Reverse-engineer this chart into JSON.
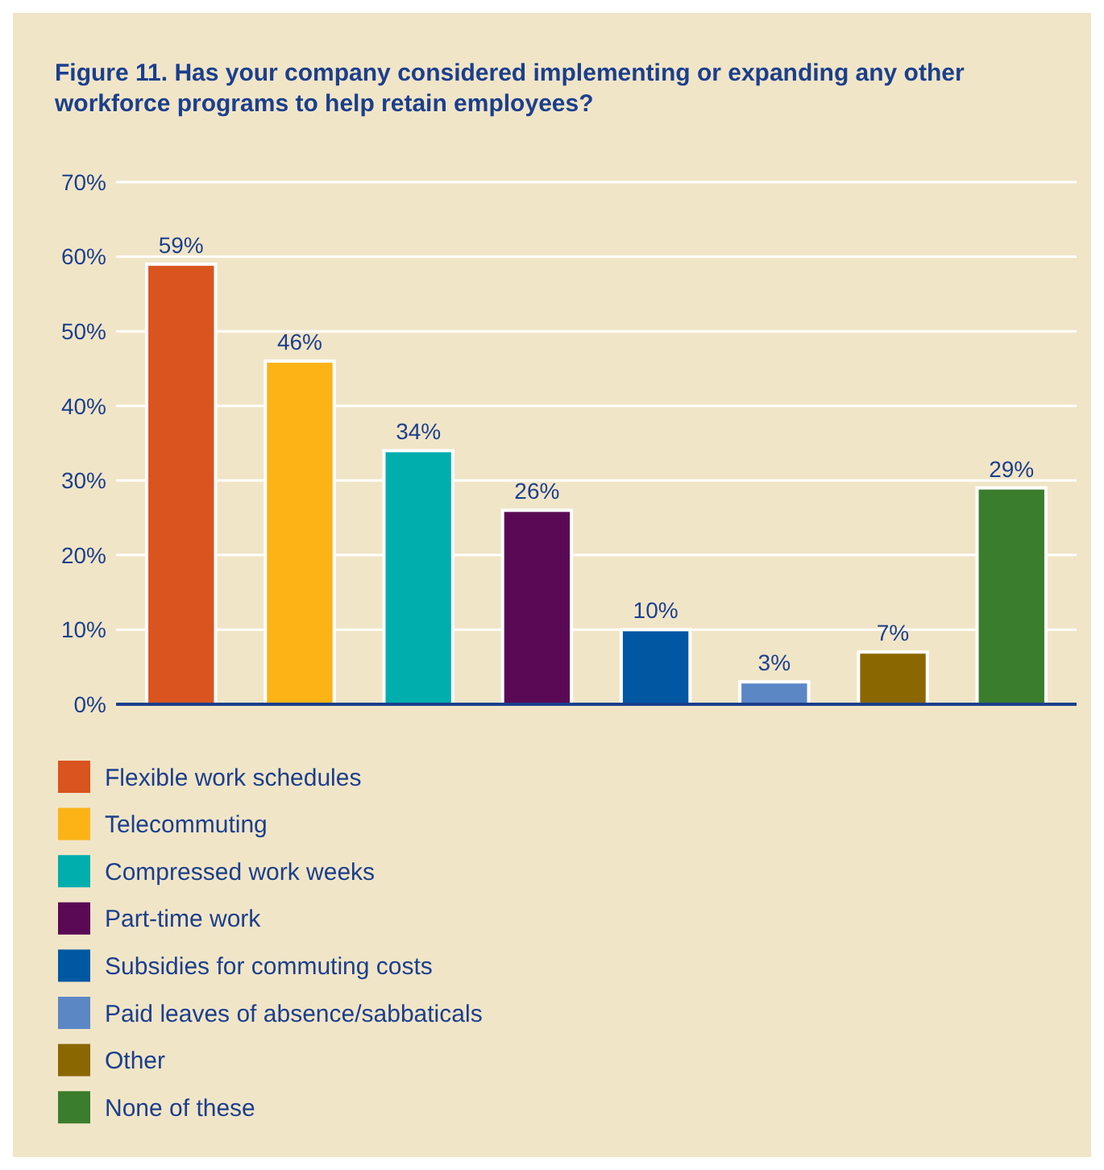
{
  "chart_data": {
    "type": "bar",
    "title": "Figure 11. Has your company considered implementing or expanding any other workforce programs to help retain employees?",
    "categories": [
      null,
      null,
      null,
      null,
      null,
      null,
      null,
      null
    ],
    "series": [
      {
        "name": "Flexible work schedules",
        "color": "#d9541e",
        "values": [
          59,
          null,
          null,
          null,
          null,
          null,
          null,
          null
        ],
        "value_labels": [
          "59%",
          null,
          null,
          null,
          null,
          null,
          null,
          null
        ]
      },
      {
        "name": "Telecommuting",
        "color": "#fbb316",
        "values": [
          null,
          46,
          null,
          null,
          null,
          null,
          null,
          null
        ],
        "value_labels": [
          null,
          "46%",
          null,
          null,
          null,
          null,
          null,
          null
        ]
      },
      {
        "name": "Compressed work weeks",
        "color": "#00aeae",
        "values": [
          null,
          null,
          34,
          null,
          null,
          null,
          null,
          null
        ],
        "value_labels": [
          null,
          null,
          "34%",
          null,
          null,
          null,
          null,
          null
        ]
      },
      {
        "name": "Part-time work",
        "color": "#5a0a54",
        "values": [
          null,
          null,
          null,
          26,
          null,
          null,
          null,
          null
        ],
        "value_labels": [
          null,
          null,
          null,
          "26%",
          null,
          null,
          null,
          null
        ]
      },
      {
        "name": "Subsidies for commuting costs",
        "color": "#0058a3",
        "values": [
          null,
          null,
          null,
          null,
          10,
          null,
          null,
          null
        ],
        "value_labels": [
          null,
          null,
          null,
          null,
          "10%",
          null,
          null,
          null
        ]
      },
      {
        "name": "Paid leaves of absence/sabbaticals",
        "color": "#5b87c5",
        "values": [
          null,
          null,
          null,
          null,
          null,
          3,
          null,
          null
        ],
        "value_labels": [
          null,
          null,
          null,
          null,
          null,
          "3%",
          null,
          null
        ]
      },
      {
        "name": "Other",
        "color": "#8b6700",
        "values": [
          null,
          null,
          null,
          null,
          null,
          null,
          7,
          null
        ],
        "value_labels": [
          null,
          null,
          null,
          null,
          null,
          null,
          "7%",
          null
        ]
      },
      {
        "name": "None of these",
        "color": "#3a7d2c",
        "values": [
          null,
          null,
          null,
          null,
          null,
          null,
          null,
          29
        ],
        "value_labels": [
          null,
          null,
          null,
          null,
          null,
          null,
          null,
          "29%"
        ]
      }
    ],
    "stacked": true,
    "ylim": [
      0,
      70
    ],
    "yticks": [
      {
        "value": 0,
        "label": "0%"
      },
      {
        "value": 10,
        "label": "10%"
      },
      {
        "value": 20,
        "label": "20%"
      },
      {
        "value": 30,
        "label": "30%"
      },
      {
        "value": 40,
        "label": "40%"
      },
      {
        "value": 50,
        "label": "50%"
      },
      {
        "value": 60,
        "label": "60%"
      },
      {
        "value": 70,
        "label": "70%"
      }
    ],
    "grid": "y",
    "legend": "bottom",
    "tick_labels": "y"
  }
}
